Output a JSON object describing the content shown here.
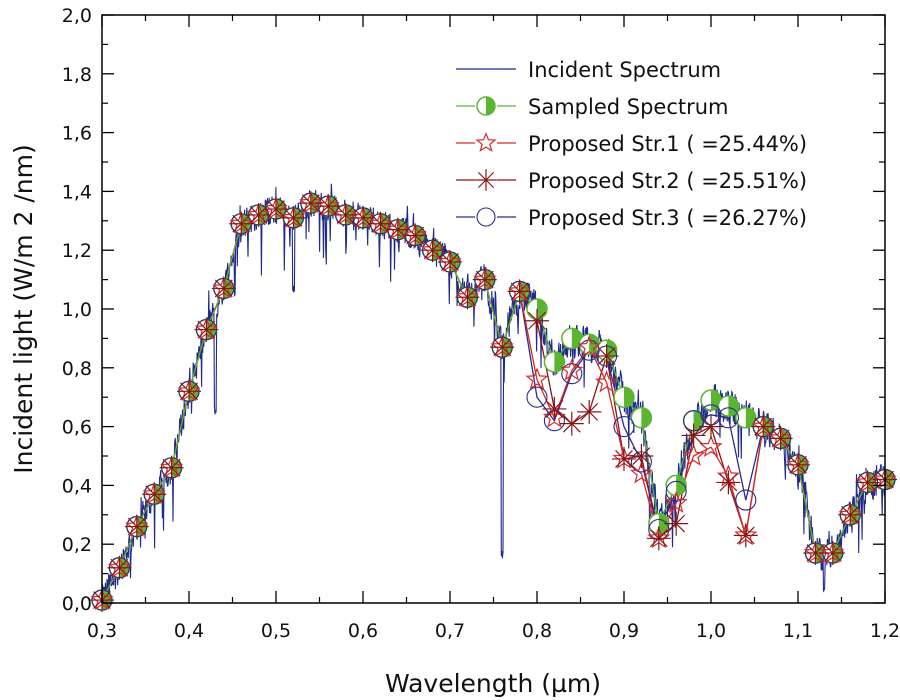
{
  "chart_data": {
    "type": "line",
    "title": "",
    "xlabel": "Wavelength (µm)",
    "ylabel": "Incident light (W/m 2 /nm)",
    "xlim": [
      0.3,
      1.2
    ],
    "ylim": [
      0.0,
      2.0
    ],
    "x_major_ticks": [
      0.3,
      0.4,
      0.5,
      0.6,
      0.7,
      0.8,
      0.9,
      1.0,
      1.1,
      1.2
    ],
    "x_tick_labels": [
      "0,3",
      "0,4",
      "0,5",
      "0,6",
      "0,7",
      "0,8",
      "0,9",
      "1,0",
      "1,1",
      "1,2"
    ],
    "y_major_ticks": [
      0.0,
      0.2,
      0.4,
      0.6,
      0.8,
      1.0,
      1.2,
      1.4,
      1.6,
      1.8,
      2.0
    ],
    "y_tick_labels": [
      "0,0",
      "0,2",
      "0,4",
      "0,6",
      "0,8",
      "1,0",
      "1,2",
      "1,4",
      "1,6",
      "1,8",
      "2,0"
    ],
    "grid": false,
    "legend_position": "top-right",
    "x": [
      0.3,
      0.32,
      0.34,
      0.36,
      0.38,
      0.4,
      0.42,
      0.44,
      0.46,
      0.48,
      0.5,
      0.52,
      0.54,
      0.56,
      0.58,
      0.6,
      0.62,
      0.64,
      0.66,
      0.68,
      0.7,
      0.72,
      0.74,
      0.76,
      0.78,
      0.8,
      0.82,
      0.84,
      0.86,
      0.88,
      0.9,
      0.92,
      0.94,
      0.96,
      0.98,
      1.0,
      1.02,
      1.04,
      1.06,
      1.08,
      1.1,
      1.12,
      1.14,
      1.16,
      1.18,
      1.2
    ],
    "series": [
      {
        "name": "Incident Spectrum",
        "style": "line",
        "color": "#1f2a8a",
        "notable_dips": [
          [
            0.43,
            0.64
          ],
          [
            0.52,
            1.05
          ],
          [
            0.76,
            0.15
          ],
          [
            0.93,
            0.26
          ],
          [
            1.13,
            0.02
          ]
        ]
      },
      {
        "name": "Sampled Spectrum",
        "style": "half-filled-circle",
        "color": "#5cb531",
        "values": [
          0.01,
          0.12,
          0.26,
          0.37,
          0.46,
          0.72,
          0.93,
          1.07,
          1.29,
          1.32,
          1.34,
          1.31,
          1.36,
          1.35,
          1.32,
          1.31,
          1.29,
          1.27,
          1.25,
          1.2,
          1.16,
          1.04,
          1.1,
          0.87,
          1.06,
          1.0,
          0.82,
          0.9,
          0.88,
          0.86,
          0.7,
          0.63,
          0.27,
          0.4,
          0.62,
          0.69,
          0.67,
          0.63,
          0.6,
          0.56,
          0.47,
          0.17,
          0.17,
          0.3,
          0.41,
          0.42
        ]
      },
      {
        "name": "Proposed Str.1 (   =25.44%)",
        "style": "star",
        "color": "#d42a2a",
        "values": [
          0.01,
          0.12,
          0.26,
          0.37,
          0.46,
          0.72,
          0.93,
          1.07,
          1.29,
          1.32,
          1.34,
          1.31,
          1.36,
          1.35,
          1.32,
          1.31,
          1.29,
          1.27,
          1.25,
          1.2,
          1.16,
          1.04,
          1.1,
          0.87,
          1.06,
          0.76,
          0.63,
          0.79,
          0.87,
          0.75,
          0.49,
          0.44,
          0.22,
          0.34,
          0.5,
          0.53,
          0.43,
          0.23,
          0.6,
          0.56,
          0.47,
          0.17,
          0.17,
          0.3,
          0.41,
          0.42
        ]
      },
      {
        "name": "Proposed Str.2 (   =25.51%)",
        "style": "asterisk",
        "color": "#8a1515",
        "values": [
          0.01,
          0.12,
          0.26,
          0.37,
          0.46,
          0.72,
          0.93,
          1.07,
          1.29,
          1.32,
          1.34,
          1.31,
          1.36,
          1.35,
          1.32,
          1.31,
          1.29,
          1.27,
          1.25,
          1.2,
          1.16,
          1.04,
          1.1,
          0.87,
          1.06,
          0.96,
          0.66,
          0.61,
          0.65,
          0.84,
          0.49,
          0.5,
          0.22,
          0.27,
          0.57,
          0.6,
          0.41,
          0.23,
          0.6,
          0.56,
          0.47,
          0.17,
          0.17,
          0.3,
          0.41,
          0.42
        ]
      },
      {
        "name": "Proposed Str.3 (   =26.27%)",
        "style": "open-circle",
        "color": "#2a2a8a",
        "values": [
          0.01,
          0.12,
          0.26,
          0.37,
          0.46,
          0.72,
          0.93,
          1.07,
          1.29,
          1.32,
          1.34,
          1.31,
          1.36,
          1.35,
          1.32,
          1.31,
          1.29,
          1.27,
          1.25,
          1.2,
          1.16,
          1.04,
          1.1,
          0.87,
          1.06,
          0.7,
          0.62,
          0.78,
          0.86,
          0.84,
          0.6,
          0.48,
          0.25,
          0.38,
          0.62,
          0.64,
          0.63,
          0.35,
          0.6,
          0.56,
          0.47,
          0.17,
          0.17,
          0.3,
          0.41,
          0.42
        ]
      }
    ]
  }
}
